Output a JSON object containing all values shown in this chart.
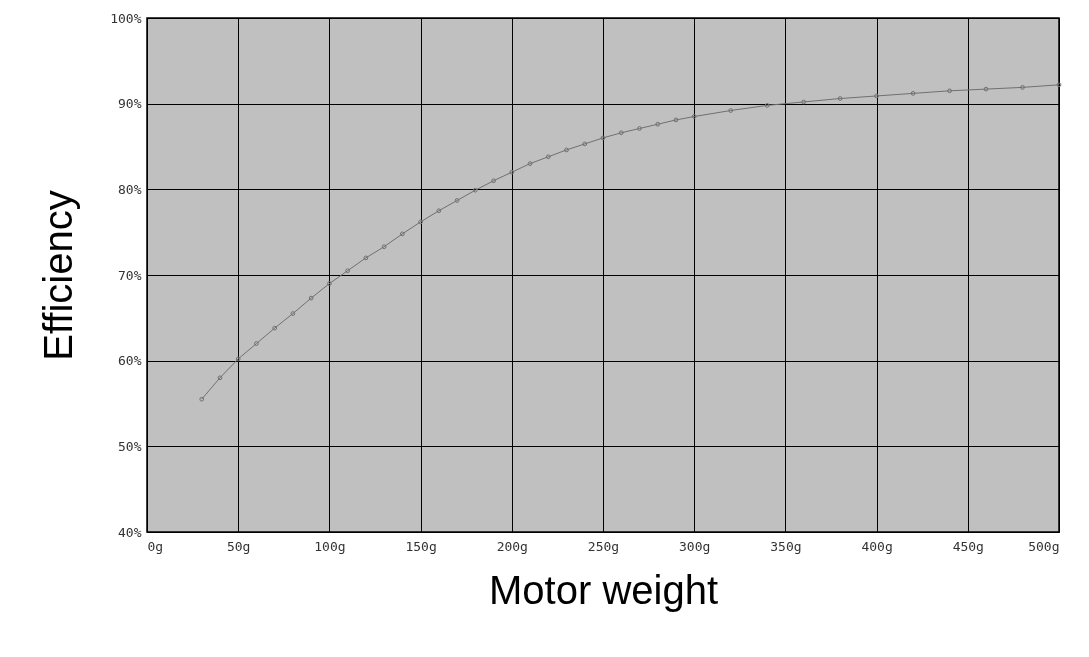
{
  "chart_data": {
    "type": "line",
    "xlabel": "Motor weight",
    "ylabel": "Efficiency",
    "x": [
      30,
      40,
      50,
      60,
      70,
      80,
      90,
      100,
      110,
      120,
      130,
      140,
      150,
      160,
      170,
      180,
      190,
      200,
      210,
      220,
      230,
      240,
      250,
      260,
      270,
      280,
      290,
      300,
      320,
      340,
      360,
      380,
      400,
      420,
      440,
      460,
      480,
      500
    ],
    "series": [
      {
        "color": "#707070",
        "values": [
          55.5,
          58,
          60.2,
          62,
          63.8,
          65.5,
          67.3,
          69,
          70.5,
          72,
          73.3,
          74.8,
          76.2,
          77.5,
          78.7,
          79.9,
          81,
          82,
          83,
          83.8,
          84.6,
          85.3,
          86,
          86.6,
          87.1,
          87.6,
          88.1,
          88.5,
          89.2,
          89.8,
          90.2,
          90.6,
          90.9,
          91.2,
          91.5,
          91.7,
          91.9,
          92.2
        ]
      }
    ],
    "xlim": [
      0,
      500
    ],
    "ylim": [
      40,
      100
    ],
    "xticks": [
      {
        "value": 0,
        "label": "0g"
      },
      {
        "value": 50,
        "label": "50g"
      },
      {
        "value": 100,
        "label": "100g"
      },
      {
        "value": 150,
        "label": "150g"
      },
      {
        "value": 200,
        "label": "200g"
      },
      {
        "value": 250,
        "label": "250g"
      },
      {
        "value": 300,
        "label": "300g"
      },
      {
        "value": 350,
        "label": "350g"
      },
      {
        "value": 400,
        "label": "400g"
      },
      {
        "value": 450,
        "label": "450g"
      },
      {
        "value": 500,
        "label": "500g"
      }
    ],
    "yticks": [
      {
        "value": 40,
        "label": "40%"
      },
      {
        "value": 50,
        "label": "50%"
      },
      {
        "value": 60,
        "label": "60%"
      },
      {
        "value": 70,
        "label": "70%"
      },
      {
        "value": 80,
        "label": "80%"
      },
      {
        "value": 90,
        "label": "90%"
      },
      {
        "value": 100,
        "label": "100%"
      }
    ],
    "grid": true,
    "marker": "circle",
    "line_style": "solid"
  }
}
